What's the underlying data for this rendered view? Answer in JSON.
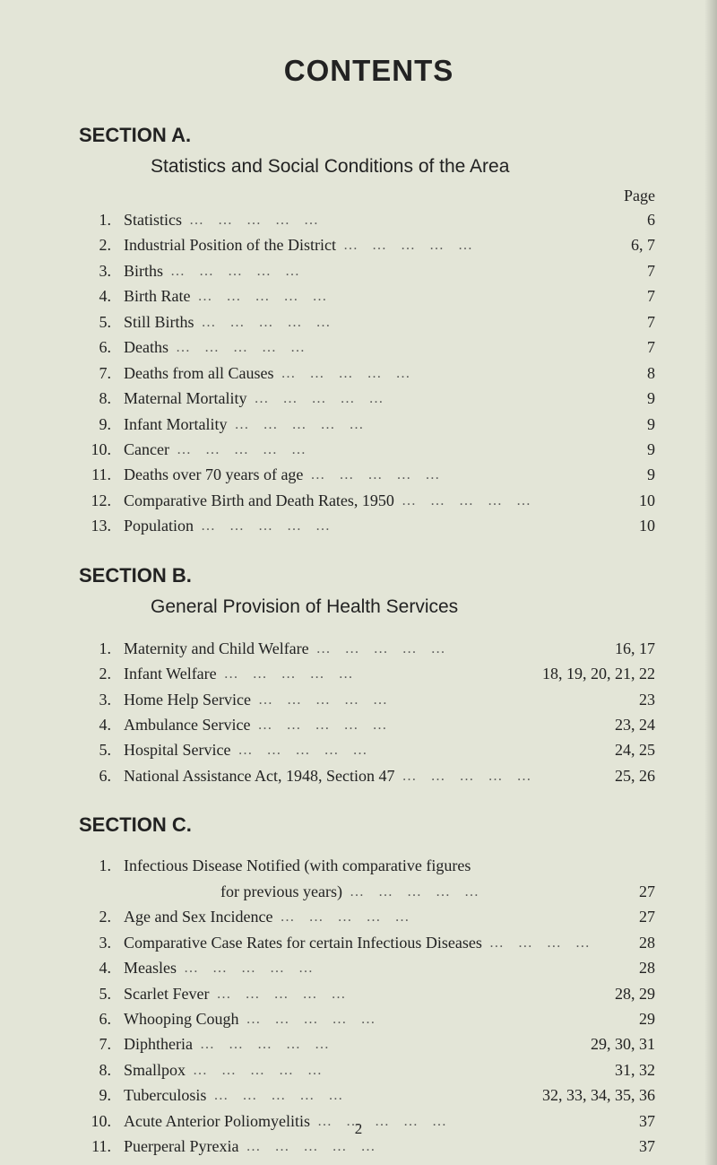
{
  "title": "CONTENTS",
  "page_label": "Page",
  "footer_page_number": "2",
  "colors": {
    "background": "#e3e5d7",
    "text": "#222222"
  },
  "typography": {
    "title_fontsize": 33,
    "section_label_fontsize": 22,
    "subtitle_fontsize": 21,
    "body_fontsize": 18,
    "title_font": "sans-serif",
    "body_font": "serif"
  },
  "leader": "…          …          …          …          …",
  "sections": [
    {
      "label": "SECTION A.",
      "subtitle": "Statistics and Social Conditions of the Area",
      "show_page_header": true,
      "items": [
        {
          "num": "1.",
          "text": "Statistics",
          "page": "6"
        },
        {
          "num": "2.",
          "text": "Industrial Position of the District",
          "page": "6, 7"
        },
        {
          "num": "3.",
          "text": "Births",
          "page": "7"
        },
        {
          "num": "4.",
          "text": "Birth Rate",
          "page": "7"
        },
        {
          "num": "5.",
          "text": "Still Births",
          "page": "7"
        },
        {
          "num": "6.",
          "text": "Deaths",
          "page": "7"
        },
        {
          "num": "7.",
          "text": "Deaths from all Causes",
          "page": "8"
        },
        {
          "num": "8.",
          "text": "Maternal Mortality",
          "page": "9"
        },
        {
          "num": "9.",
          "text": "Infant Mortality",
          "page": "9"
        },
        {
          "num": "10.",
          "text": "Cancer",
          "page": "9"
        },
        {
          "num": "11.",
          "text": "Deaths over 70 years of age",
          "page": "9"
        },
        {
          "num": "12.",
          "text": "Comparative Birth and Death Rates, 1950",
          "page": "10"
        },
        {
          "num": "13.",
          "text": "Population",
          "page": "10"
        }
      ]
    },
    {
      "label": "SECTION B.",
      "subtitle": "General Provision of Health Services",
      "show_page_header": false,
      "items": [
        {
          "num": "1.",
          "text": "Maternity and Child Welfare",
          "page": "16, 17"
        },
        {
          "num": "2.",
          "text": "Infant Welfare",
          "page": "18, 19, 20, 21, 22"
        },
        {
          "num": "3.",
          "text": "Home Help Service",
          "page": "23"
        },
        {
          "num": "4.",
          "text": "Ambulance Service",
          "page": "23, 24"
        },
        {
          "num": "5.",
          "text": "Hospital Service",
          "page": "24, 25"
        },
        {
          "num": "6.",
          "text": "National Assistance Act, 1948, Section 47",
          "page": "25, 26"
        }
      ]
    },
    {
      "label": "SECTION C.",
      "subtitle": "",
      "show_page_header": false,
      "items": [
        {
          "num": "1.",
          "text": "Infectious Disease Notified (with comparative figures",
          "page": ""
        },
        {
          "num": "",
          "text": "for previous years)",
          "indent": true,
          "page": "27"
        },
        {
          "num": "2.",
          "text": "Age and Sex Incidence",
          "page": "27"
        },
        {
          "num": "3.",
          "text": "Comparative Case Rates for certain Infectious Diseases",
          "page": "28"
        },
        {
          "num": "4.",
          "text": "Measles",
          "page": "28"
        },
        {
          "num": "5.",
          "text": "Scarlet Fever",
          "page": "28, 29"
        },
        {
          "num": "6.",
          "text": "Whooping Cough",
          "page": "29"
        },
        {
          "num": "7.",
          "text": "Diphtheria",
          "page": "29, 30, 31"
        },
        {
          "num": "8.",
          "text": "Smallpox",
          "page": "31, 32"
        },
        {
          "num": "9.",
          "text": "Tuberculosis",
          "page": "32, 33, 34, 35, 36"
        },
        {
          "num": "10.",
          "text": "Acute Anterior Poliomyelitis",
          "page": "37"
        },
        {
          "num": "11.",
          "text": "Puerperal Pyrexia",
          "page": "37"
        }
      ]
    }
  ]
}
